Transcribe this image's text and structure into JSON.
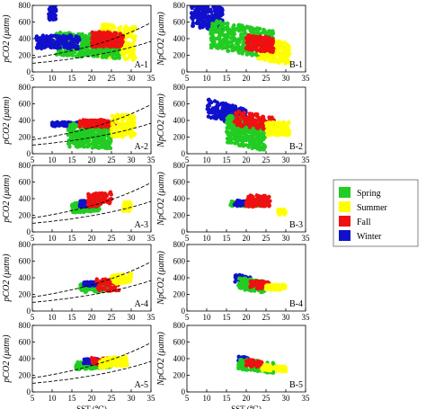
{
  "chart_data": {
    "type": "scatter",
    "x_label": "SST (℃)",
    "y_label_left": "pCO2 (μatm)",
    "y_label_right": "NpCO2 (μatm)",
    "xlim": [
      5,
      35
    ],
    "ylim": [
      0,
      800
    ],
    "x_ticks": [
      5,
      10,
      15,
      20,
      25,
      30,
      35
    ],
    "y_ticks": [
      0,
      200,
      400,
      600,
      800
    ],
    "legend": {
      "placement": "right",
      "entries": [
        {
          "name": "Spring",
          "color": "#22cc22"
        },
        {
          "name": "Summer",
          "color": "#ffff00"
        },
        {
          "name": "Fall",
          "color": "#ee1111"
        },
        {
          "name": "Winter",
          "color": "#1111cc"
        }
      ]
    },
    "panels": [
      {
        "id": "A-1",
        "column": 0,
        "row": 0,
        "dashed": true,
        "clusters": [
          {
            "season": "Summer",
            "x": [
              22,
              31
            ],
            "y": [
              160,
              560
            ],
            "slope": -8,
            "n": 260
          },
          {
            "season": "Spring",
            "x": [
              11,
              27
            ],
            "y": [
              180,
              460
            ],
            "slope": -4,
            "n": 360
          },
          {
            "season": "Fall",
            "x": [
              20,
              28
            ],
            "y": [
              300,
              480
            ],
            "slope": 0,
            "n": 160
          },
          {
            "season": "Winter",
            "x": [
              6,
              17
            ],
            "y": [
              280,
              440
            ],
            "slope": 0,
            "n": 160
          },
          {
            "season": "Winter",
            "x": [
              9,
              11
            ],
            "y": [
              620,
              800
            ],
            "slope": 0,
            "n": 40
          }
        ]
      },
      {
        "id": "B-1",
        "column": 1,
        "row": 0,
        "dashed": false,
        "clusters": [
          {
            "season": "Winter",
            "x": [
              6,
              14
            ],
            "y": [
              520,
              800
            ],
            "slope": -10,
            "n": 220
          },
          {
            "season": "Spring",
            "x": [
              11,
              27
            ],
            "y": [
              220,
              560
            ],
            "slope": -14,
            "n": 380
          },
          {
            "season": "Summer",
            "x": [
              23,
              31
            ],
            "y": [
              120,
              380
            ],
            "slope": -14,
            "n": 240
          },
          {
            "season": "Fall",
            "x": [
              20,
              27
            ],
            "y": [
              250,
              430
            ],
            "slope": -8,
            "n": 150
          }
        ]
      },
      {
        "id": "A-2",
        "column": 0,
        "row": 1,
        "dashed": true,
        "clusters": [
          {
            "season": "Winter",
            "x": [
              10,
              19
            ],
            "y": [
              330,
              380
            ],
            "slope": 0,
            "n": 160
          },
          {
            "season": "Spring",
            "x": [
              14,
              25
            ],
            "y": [
              70,
              360
            ],
            "slope": -4,
            "n": 320
          },
          {
            "season": "Fall",
            "x": [
              17,
              26
            ],
            "y": [
              320,
              410
            ],
            "slope": 0,
            "n": 140
          },
          {
            "season": "Summer",
            "x": [
              25,
              31
            ],
            "y": [
              200,
              470
            ],
            "slope": 0,
            "n": 130
          }
        ]
      },
      {
        "id": "B-2",
        "column": 1,
        "row": 1,
        "dashed": false,
        "clusters": [
          {
            "season": "Winter",
            "x": [
              10,
              20
            ],
            "y": [
              380,
              600
            ],
            "slope": -22,
            "n": 200
          },
          {
            "season": "Spring",
            "x": [
              15,
              25
            ],
            "y": [
              80,
              420
            ],
            "slope": -18,
            "n": 320
          },
          {
            "season": "Fall",
            "x": [
              17,
              27
            ],
            "y": [
              300,
              480
            ],
            "slope": -14,
            "n": 150
          },
          {
            "season": "Summer",
            "x": [
              25,
              31
            ],
            "y": [
              220,
              380
            ],
            "slope": 0,
            "n": 110
          }
        ]
      },
      {
        "id": "A-3",
        "column": 0,
        "row": 2,
        "dashed": true,
        "clusters": [
          {
            "season": "Spring",
            "x": [
              15,
              22
            ],
            "y": [
              240,
              360
            ],
            "slope": 8,
            "n": 140
          },
          {
            "season": "Winter",
            "x": [
              17,
              21
            ],
            "y": [
              300,
              380
            ],
            "slope": 0,
            "n": 70
          },
          {
            "season": "Fall",
            "x": [
              19,
              25
            ],
            "y": [
              310,
              470
            ],
            "slope": 8,
            "n": 90
          },
          {
            "season": "Summer",
            "x": [
              28,
              30
            ],
            "y": [
              250,
              360
            ],
            "slope": 0,
            "n": 40
          }
        ]
      },
      {
        "id": "B-3",
        "column": 1,
        "row": 2,
        "dashed": false,
        "clusters": [
          {
            "season": "Spring",
            "x": [
              16,
              24
            ],
            "y": [
              310,
              370
            ],
            "slope": 0,
            "n": 130
          },
          {
            "season": "Winter",
            "x": [
              17,
              21
            ],
            "y": [
              310,
              380
            ],
            "slope": 0,
            "n": 60
          },
          {
            "season": "Fall",
            "x": [
              20,
              26
            ],
            "y": [
              300,
              440
            ],
            "slope": -4,
            "n": 90
          },
          {
            "season": "Summer",
            "x": [
              28,
              30
            ],
            "y": [
              200,
              270
            ],
            "slope": 0,
            "n": 30
          }
        ]
      },
      {
        "id": "A-4",
        "column": 0,
        "row": 3,
        "dashed": true,
        "clusters": [
          {
            "season": "Spring",
            "x": [
              17,
              25
            ],
            "y": [
              230,
              350
            ],
            "slope": 4,
            "n": 130
          },
          {
            "season": "Winter",
            "x": [
              18,
              21
            ],
            "y": [
              300,
              350
            ],
            "slope": 0,
            "n": 50
          },
          {
            "season": "Fall",
            "x": [
              21,
              27
            ],
            "y": [
              240,
              390
            ],
            "slope": 0,
            "n": 60
          },
          {
            "season": "Summer",
            "x": [
              25,
              30
            ],
            "y": [
              330,
              440
            ],
            "slope": 10,
            "n": 80
          }
        ]
      },
      {
        "id": "B-4",
        "column": 1,
        "row": 3,
        "dashed": false,
        "clusters": [
          {
            "season": "Winter",
            "x": [
              17,
              21
            ],
            "y": [
              340,
              430
            ],
            "slope": -10,
            "n": 50
          },
          {
            "season": "Spring",
            "x": [
              18,
              25
            ],
            "y": [
              240,
              380
            ],
            "slope": -12,
            "n": 130
          },
          {
            "season": "Fall",
            "x": [
              21,
              26
            ],
            "y": [
              260,
              360
            ],
            "slope": -8,
            "n": 50
          },
          {
            "season": "Summer",
            "x": [
              25,
              30
            ],
            "y": [
              250,
              320
            ],
            "slope": 0,
            "n": 70
          }
        ]
      },
      {
        "id": "A-5",
        "column": 0,
        "row": 4,
        "dashed": true,
        "clusters": [
          {
            "season": "Spring",
            "x": [
              16,
              25
            ],
            "y": [
              280,
              370
            ],
            "slope": 4,
            "n": 150
          },
          {
            "season": "Winter",
            "x": [
              18,
              22
            ],
            "y": [
              340,
              400
            ],
            "slope": 0,
            "n": 60
          },
          {
            "season": "Fall",
            "x": [
              20,
              24
            ],
            "y": [
              330,
              410
            ],
            "slope": 0,
            "n": 40
          },
          {
            "season": "Summer",
            "x": [
              22,
              29
            ],
            "y": [
              300,
              420
            ],
            "slope": 10,
            "n": 110
          }
        ]
      },
      {
        "id": "B-5",
        "column": 1,
        "row": 4,
        "dashed": false,
        "clusters": [
          {
            "season": "Winter",
            "x": [
              18,
              21
            ],
            "y": [
              350,
              420
            ],
            "slope": -8,
            "n": 50
          },
          {
            "season": "Spring",
            "x": [
              18,
              27
            ],
            "y": [
              250,
              380
            ],
            "slope": -10,
            "n": 140
          },
          {
            "season": "Fall",
            "x": [
              20,
              24
            ],
            "y": [
              300,
              380
            ],
            "slope": -8,
            "n": 40
          },
          {
            "season": "Summer",
            "x": [
              24,
              30
            ],
            "y": [
              250,
              320
            ],
            "slope": -6,
            "n": 90
          }
        ]
      }
    ]
  }
}
